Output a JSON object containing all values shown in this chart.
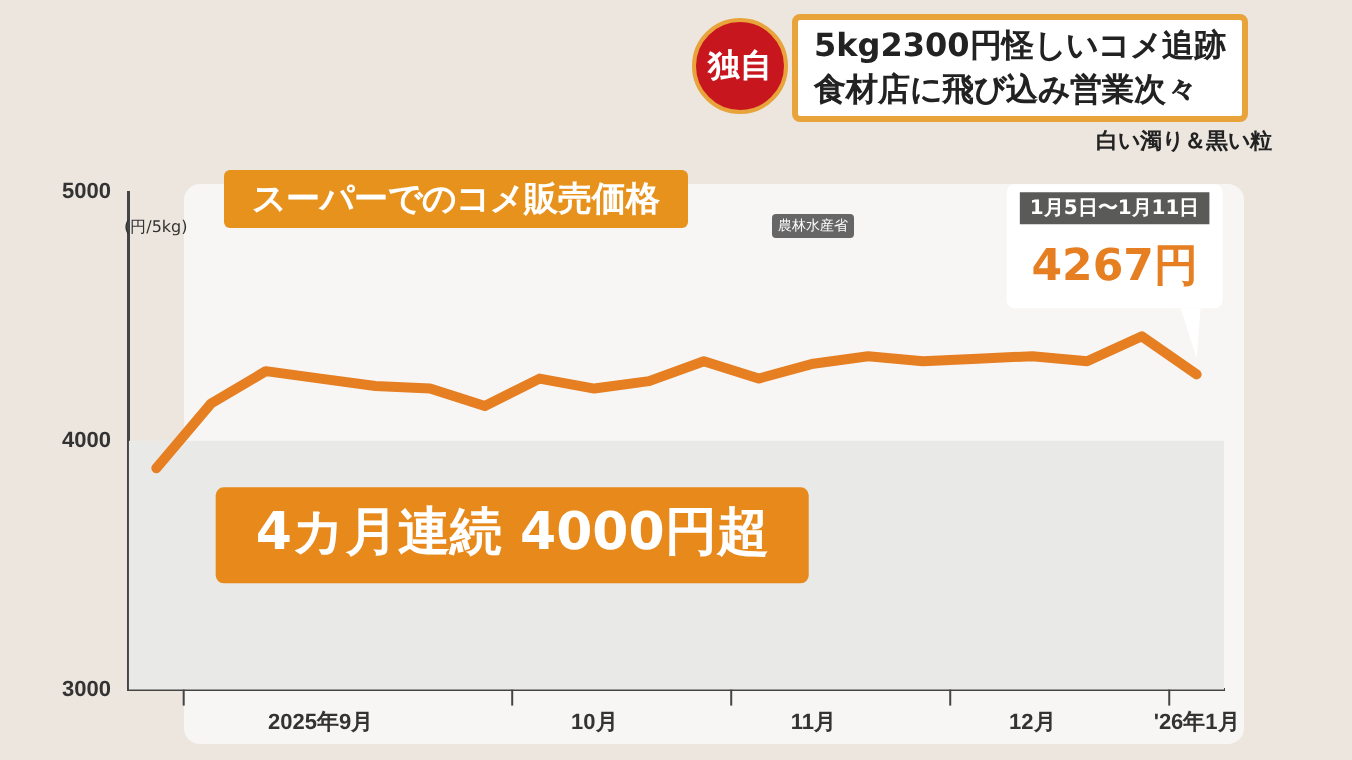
{
  "chart_data": {
    "type": "line",
    "title": "スーパーでのコメ販売価格",
    "ylabel": "(円/5kg)",
    "categories": [
      null,
      null,
      null,
      "2025年9月",
      null,
      null,
      null,
      null,
      "10月",
      null,
      null,
      null,
      "11月",
      null,
      null,
      null,
      "12月",
      null,
      null,
      "'26年1月"
    ],
    "series": [
      {
        "color": "#e67e22",
        "values": [
          3890,
          4150,
          4280,
          4250,
          4220,
          4210,
          4140,
          4250,
          4210,
          4240,
          4320,
          4250,
          4310,
          4340,
          4320,
          4330,
          4340,
          4320,
          4420,
          4267
        ],
        "value_labels": [
          null,
          null,
          null,
          null,
          null,
          null,
          null,
          null,
          null,
          null,
          null,
          null,
          null,
          null,
          null,
          null,
          null,
          null,
          null,
          "4267円"
        ]
      }
    ],
    "ylim": [
      3000,
      5000
    ],
    "yticks": [
      3000,
      4000,
      5000
    ],
    "bands": [
      {
        "axis": "y",
        "from": 3000,
        "to": 4000,
        "color": "#e9e9e7"
      }
    ],
    "grid": false,
    "legend": false,
    "marker": "none",
    "line_style": "solid",
    "annotations": [
      "独自",
      "5kg2300円怪しいコメ追跡",
      "食材店に飛び込み営業次々",
      "白い濁り＆黒い粒",
      "農林水産省",
      "4カ月連続 4000円超",
      "1月5日〜1月11日"
    ]
  }
}
